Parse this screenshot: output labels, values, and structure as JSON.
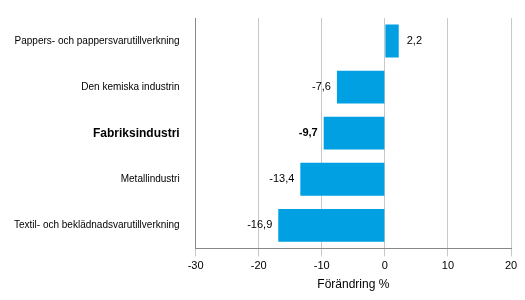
{
  "chart_data": {
    "type": "bar",
    "orientation": "horizontal",
    "categories": [
      "Pappers- och pappersvarutillverkning",
      "Den kemiska industrin",
      "Fabriksindustri",
      "Metallindustri",
      "Textil- och beklädnadsvarutillverkning"
    ],
    "values": [
      2.2,
      -7.6,
      -9.7,
      -13.4,
      -16.9
    ],
    "value_labels": [
      "2,2",
      "-7,6",
      "-9,7",
      "-13,4",
      "-16,9"
    ],
    "data_labels": true,
    "color": "#00a0e3",
    "x_label": "Förändring %",
    "xlim": [
      -30,
      20
    ],
    "xticks": [
      -30,
      -20,
      -10,
      0,
      10,
      20
    ],
    "grid": true
  }
}
